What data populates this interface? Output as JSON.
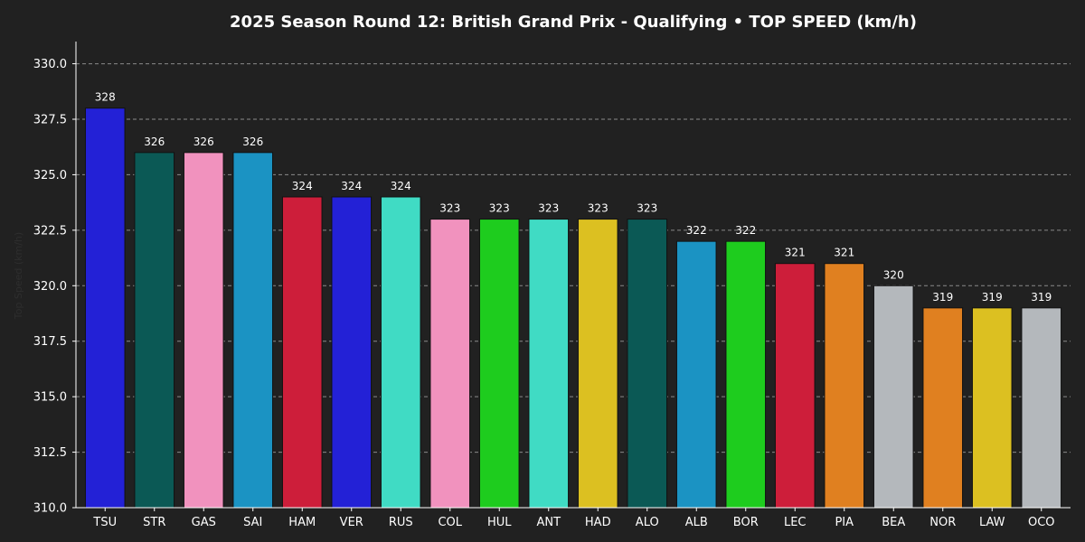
{
  "chart_data": {
    "type": "bar",
    "title": "2025 Season Round 12: British Grand Prix - Qualifying  •  TOP SPEED (km/h)",
    "xlabel": "",
    "ylabel": "Top Speed (km/h)",
    "ylim": [
      310.0,
      331.0
    ],
    "yticks": [
      "310.0",
      "312.5",
      "315.0",
      "317.5",
      "320.0",
      "322.5",
      "325.0",
      "327.5",
      "330.0"
    ],
    "ytick_values": [
      310.0,
      312.5,
      315.0,
      317.5,
      320.0,
      322.5,
      325.0,
      327.5,
      330.0
    ],
    "grid": true,
    "categories": [
      "TSU",
      "STR",
      "GAS",
      "SAI",
      "HAM",
      "VER",
      "RUS",
      "COL",
      "HUL",
      "ANT",
      "HAD",
      "ALO",
      "ALB",
      "BOR",
      "LEC",
      "PIA",
      "BEA",
      "NOR",
      "LAW",
      "OCO"
    ],
    "values": [
      328,
      326,
      326,
      326,
      324,
      324,
      324,
      323,
      323,
      323,
      323,
      323,
      322,
      322,
      321,
      321,
      320,
      319,
      319,
      319
    ],
    "data_labels": [
      "328",
      "326",
      "326",
      "326",
      "324",
      "324",
      "324",
      "323",
      "323",
      "323",
      "323",
      "323",
      "322",
      "322",
      "321",
      "321",
      "320",
      "319",
      "319",
      "319"
    ],
    "colors": [
      "#2321d6",
      "#0b5955",
      "#f192be",
      "#1b93c3",
      "#cd1e3a",
      "#2321d6",
      "#40dbc4",
      "#f192be",
      "#1ecc1e",
      "#40dbc4",
      "#dcc021",
      "#0b5955",
      "#1b93c3",
      "#1ecc1e",
      "#cd1e3a",
      "#e08020",
      "#b4b8bc",
      "#e08020",
      "#dcc021",
      "#b4b8bc"
    ]
  },
  "colors": {
    "background": "#212121",
    "text": "#ffffff",
    "grid": "#8a8a8a"
  }
}
